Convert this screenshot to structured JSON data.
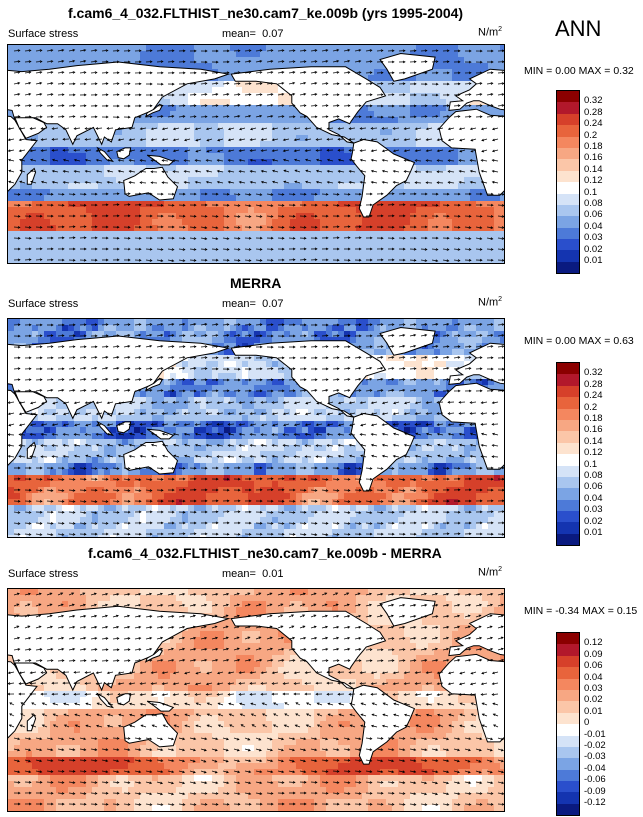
{
  "season": "ANN",
  "panels": [
    {
      "id": "model",
      "title": "f.cam6_4_032.FLTHIST_ne30.cam7_ke.009b (yrs 1995-2004)",
      "variable": "Surface stress",
      "mean_label": "mean=",
      "mean_value": "0.07",
      "units": "N/m",
      "units_sup": "2",
      "min_label": "MIN =",
      "min_value": "0.00",
      "max_label": "MAX =",
      "max_value": "0.32",
      "colorbar_ticks": [
        "0.32",
        "0.28",
        "0.24",
        "0.2",
        "0.18",
        "0.16",
        "0.14",
        "0.12",
        "0.1",
        "0.08",
        "0.06",
        "0.04",
        "0.03",
        "0.02",
        "0.01"
      ],
      "colorbar_colors": [
        "#8b0000",
        "#b2182b",
        "#d6402a",
        "#e8643c",
        "#f4875f",
        "#f7a783",
        "#fbc6a8",
        "#fde3cf",
        "#ffffff",
        "#d5e3f7",
        "#a9c6ef",
        "#7ba4e4",
        "#4d7ad8",
        "#2a4fcc",
        "#1434b0",
        "#0a1a80"
      ],
      "field_type": "stress"
    },
    {
      "id": "obs",
      "title": "MERRA",
      "variable": "Surface stress",
      "mean_label": "mean=",
      "mean_value": "0.07",
      "units": "N/m",
      "units_sup": "2",
      "min_label": "MIN =",
      "min_value": "0.00",
      "max_label": "MAX =",
      "max_value": "0.63",
      "colorbar_ticks": [
        "0.32",
        "0.28",
        "0.24",
        "0.2",
        "0.18",
        "0.16",
        "0.14",
        "0.12",
        "0.1",
        "0.08",
        "0.06",
        "0.04",
        "0.03",
        "0.02",
        "0.01"
      ],
      "colorbar_colors": [
        "#8b0000",
        "#b2182b",
        "#d6402a",
        "#e8643c",
        "#f4875f",
        "#f7a783",
        "#fbc6a8",
        "#fde3cf",
        "#ffffff",
        "#d5e3f7",
        "#a9c6ef",
        "#7ba4e4",
        "#4d7ad8",
        "#2a4fcc",
        "#1434b0",
        "#0a1a80"
      ],
      "field_type": "stress"
    },
    {
      "id": "diff",
      "title": "f.cam6_4_032.FLTHIST_ne30.cam7_ke.009b - MERRA",
      "variable": "Surface stress",
      "mean_label": "mean=",
      "mean_value": "0.01",
      "units": "N/m",
      "units_sup": "2",
      "min_label": "MIN =",
      "min_value": "-0.34",
      "max_label": "MAX =",
      "max_value": "0.15",
      "colorbar_ticks": [
        "0.12",
        "0.09",
        "0.06",
        "0.04",
        "0.03",
        "0.02",
        "0.01",
        "0",
        "-0.01",
        "-0.02",
        "-0.03",
        "-0.04",
        "-0.06",
        "-0.09",
        "-0.12"
      ],
      "colorbar_colors": [
        "#8b0000",
        "#b2182b",
        "#d6402a",
        "#e8643c",
        "#f4875f",
        "#f7a783",
        "#fbc6a8",
        "#fde3cf",
        "#ffffff",
        "#d5e3f7",
        "#a9c6ef",
        "#7ba4e4",
        "#4d7ad8",
        "#2a4fcc",
        "#1434b0",
        "#0a1a80"
      ],
      "field_type": "diff"
    }
  ]
}
